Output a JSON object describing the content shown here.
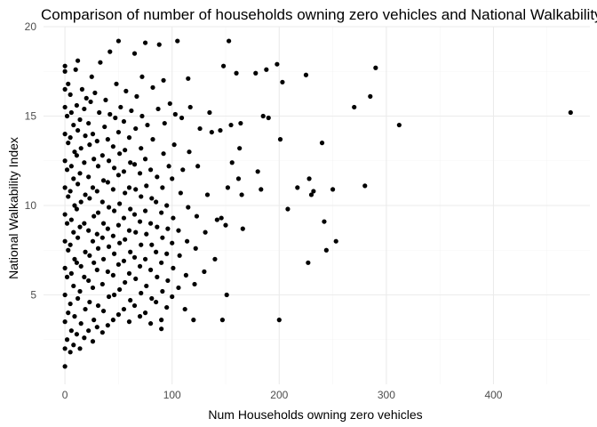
{
  "chart_data": {
    "type": "scatter",
    "title": "Comparison of number of households owning zero vehicles and National Walkability Index",
    "xlabel": "Num Households owning zero vehicles",
    "ylabel": "National Walkability Index",
    "xlim": [
      -20,
      490
    ],
    "ylim": [
      0,
      20
    ],
    "xticks": [
      0,
      100,
      200,
      300,
      400
    ],
    "yticks": [
      5,
      10,
      15,
      20
    ],
    "grid": true,
    "legend": "none",
    "point_color": "#000000",
    "series": [
      {
        "values": [
          [
            0,
            1.0
          ],
          [
            0,
            2.0
          ],
          [
            0,
            3.5
          ],
          [
            0,
            5.0
          ],
          [
            0,
            6.5
          ],
          [
            0,
            8.0
          ],
          [
            0,
            9.5
          ],
          [
            0,
            11.0
          ],
          [
            0,
            12.5
          ],
          [
            0,
            14.0
          ],
          [
            0,
            15.5
          ],
          [
            0,
            16.5
          ],
          [
            0,
            17.5
          ],
          [
            0,
            17.8
          ],
          [
            2,
            2.5
          ],
          [
            3,
            4.0
          ],
          [
            2,
            6.0
          ],
          [
            3,
            7.5
          ],
          [
            2,
            9.0
          ],
          [
            3,
            10.5
          ],
          [
            2,
            12.0
          ],
          [
            3,
            13.5
          ],
          [
            2,
            15.0
          ],
          [
            3,
            16.8
          ],
          [
            5,
            1.8
          ],
          [
            6,
            3.0
          ],
          [
            5,
            4.5
          ],
          [
            6,
            6.2
          ],
          [
            5,
            7.8
          ],
          [
            6,
            9.2
          ],
          [
            5,
            10.8
          ],
          [
            6,
            12.2
          ],
          [
            5,
            13.8
          ],
          [
            6,
            15.2
          ],
          [
            5,
            16.2
          ],
          [
            8,
            2.2
          ],
          [
            9,
            3.8
          ],
          [
            8,
            5.5
          ],
          [
            9,
            7.0
          ],
          [
            8,
            8.5
          ],
          [
            9,
            10.0
          ],
          [
            8,
            11.5
          ],
          [
            9,
            13.0
          ],
          [
            8,
            14.5
          ],
          [
            10,
            17.6
          ],
          [
            12,
            18.1
          ],
          [
            11,
            2.8
          ],
          [
            12,
            4.8
          ],
          [
            11,
            6.8
          ],
          [
            12,
            8.2
          ],
          [
            11,
            9.8
          ],
          [
            12,
            11.2
          ],
          [
            11,
            12.8
          ],
          [
            12,
            14.2
          ],
          [
            11,
            15.6
          ],
          [
            14,
            2.0
          ],
          [
            15,
            3.4
          ],
          [
            14,
            5.2
          ],
          [
            15,
            6.6
          ],
          [
            14,
            8.8
          ],
          [
            15,
            10.2
          ],
          [
            14,
            11.8
          ],
          [
            15,
            13.2
          ],
          [
            14,
            14.8
          ],
          [
            16,
            16.5
          ],
          [
            18,
            2.6
          ],
          [
            19,
            4.2
          ],
          [
            18,
            6.0
          ],
          [
            19,
            7.4
          ],
          [
            18,
            9.0
          ],
          [
            19,
            10.6
          ],
          [
            18,
            12.4
          ],
          [
            19,
            13.9
          ],
          [
            18,
            15.4
          ],
          [
            20,
            16.0
          ],
          [
            22,
            3.0
          ],
          [
            23,
            4.6
          ],
          [
            22,
            5.8
          ],
          [
            23,
            7.2
          ],
          [
            22,
            8.6
          ],
          [
            23,
            10.4
          ],
          [
            22,
            11.6
          ],
          [
            23,
            13.4
          ],
          [
            22,
            14.6
          ],
          [
            24,
            15.8
          ],
          [
            26,
            2.4
          ],
          [
            27,
            3.6
          ],
          [
            26,
            5.4
          ],
          [
            27,
            6.8
          ],
          [
            26,
            8.0
          ],
          [
            27,
            9.4
          ],
          [
            26,
            11.0
          ],
          [
            27,
            12.6
          ],
          [
            26,
            14.0
          ],
          [
            25,
            17.2
          ],
          [
            28,
            16.3
          ],
          [
            30,
            3.2
          ],
          [
            31,
            4.4
          ],
          [
            30,
            6.4
          ],
          [
            31,
            7.6
          ],
          [
            30,
            8.4
          ],
          [
            31,
            9.6
          ],
          [
            30,
            10.8
          ],
          [
            31,
            12.2
          ],
          [
            30,
            13.6
          ],
          [
            32,
            15.2
          ],
          [
            33,
            18.0
          ],
          [
            35,
            2.9
          ],
          [
            36,
            4.1
          ],
          [
            35,
            5.6
          ],
          [
            36,
            7.0
          ],
          [
            35,
            8.2
          ],
          [
            36,
            9.0
          ],
          [
            35,
            10.2
          ],
          [
            36,
            11.4
          ],
          [
            35,
            12.8
          ],
          [
            37,
            14.4
          ],
          [
            38,
            15.9
          ],
          [
            40,
            3.3
          ],
          [
            41,
            4.9
          ],
          [
            40,
            6.3
          ],
          [
            41,
            7.7
          ],
          [
            40,
            8.7
          ],
          [
            41,
            9.9
          ],
          [
            40,
            11.3
          ],
          [
            41,
            12.5
          ],
          [
            40,
            13.7
          ],
          [
            42,
            15.1
          ],
          [
            42,
            18.6
          ],
          [
            45,
            3.6
          ],
          [
            46,
            5.0
          ],
          [
            45,
            6.1
          ],
          [
            46,
            7.3
          ],
          [
            45,
            8.3
          ],
          [
            46,
            9.7
          ],
          [
            45,
            10.9
          ],
          [
            46,
            12.1
          ],
          [
            45,
            13.3
          ],
          [
            47,
            14.9
          ],
          [
            48,
            16.8
          ],
          [
            50,
            3.9
          ],
          [
            51,
            5.3
          ],
          [
            50,
            6.7
          ],
          [
            51,
            7.9
          ],
          [
            50,
            8.9
          ],
          [
            51,
            10.1
          ],
          [
            50,
            11.7
          ],
          [
            51,
            12.9
          ],
          [
            50,
            14.1
          ],
          [
            52,
            15.5
          ],
          [
            50,
            19.2
          ],
          [
            55,
            4.2
          ],
          [
            56,
            5.7
          ],
          [
            55,
            6.9
          ],
          [
            56,
            8.1
          ],
          [
            55,
            9.3
          ],
          [
            56,
            10.7
          ],
          [
            55,
            11.9
          ],
          [
            56,
            13.1
          ],
          [
            55,
            14.7
          ],
          [
            57,
            16.4
          ],
          [
            60,
            3.5
          ],
          [
            61,
            4.7
          ],
          [
            60,
            6.2
          ],
          [
            61,
            7.4
          ],
          [
            60,
            8.6
          ],
          [
            61,
            9.8
          ],
          [
            60,
            11.0
          ],
          [
            61,
            12.4
          ],
          [
            60,
            13.8
          ],
          [
            62,
            15.3
          ],
          [
            65,
            4.4
          ],
          [
            66,
            5.9
          ],
          [
            65,
            7.1
          ],
          [
            66,
            8.5
          ],
          [
            65,
            9.5
          ],
          [
            66,
            10.9
          ],
          [
            65,
            12.3
          ],
          [
            66,
            14.3
          ],
          [
            67,
            16.1
          ],
          [
            65,
            18.5
          ],
          [
            70,
            3.8
          ],
          [
            71,
            5.1
          ],
          [
            70,
            6.6
          ],
          [
            71,
            7.8
          ],
          [
            70,
            9.1
          ],
          [
            71,
            10.5
          ],
          [
            70,
            11.8
          ],
          [
            71,
            13.2
          ],
          [
            72,
            15.0
          ],
          [
            72,
            17.2
          ],
          [
            75,
            4.0
          ],
          [
            76,
            5.5
          ],
          [
            75,
            7.0
          ],
          [
            76,
            8.4
          ],
          [
            75,
            9.7
          ],
          [
            76,
            11.1
          ],
          [
            75,
            12.6
          ],
          [
            77,
            14.5
          ],
          [
            75,
            19.1
          ],
          [
            80,
            3.4
          ],
          [
            81,
            4.8
          ],
          [
            80,
            6.4
          ],
          [
            81,
            7.8
          ],
          [
            80,
            9.0
          ],
          [
            81,
            10.4
          ],
          [
            80,
            12.0
          ],
          [
            82,
            13.7
          ],
          [
            82,
            16.6
          ],
          [
            85,
            4.6
          ],
          [
            86,
            6.0
          ],
          [
            85,
            7.4
          ],
          [
            86,
            8.8
          ],
          [
            85,
            10.2
          ],
          [
            86,
            11.6
          ],
          [
            87,
            15.4
          ],
          [
            88,
            19.0
          ],
          [
            90,
            3.1
          ],
          [
            90,
            3.6
          ],
          [
            91,
            5.2
          ],
          [
            90,
            6.8
          ],
          [
            91,
            8.2
          ],
          [
            90,
            9.6
          ],
          [
            91,
            11.0
          ],
          [
            92,
            12.9
          ],
          [
            93,
            14.6
          ],
          [
            92,
            17.0
          ],
          [
            95,
            4.3
          ],
          [
            96,
            5.8
          ],
          [
            95,
            7.3
          ],
          [
            96,
            8.7
          ],
          [
            95,
            10.0
          ],
          [
            97,
            12.2
          ],
          [
            98,
            15.7
          ],
          [
            100,
            4.9
          ],
          [
            101,
            6.5
          ],
          [
            100,
            7.9
          ],
          [
            101,
            9.3
          ],
          [
            100,
            11.5
          ],
          [
            102,
            13.4
          ],
          [
            103,
            15.1
          ],
          [
            105,
            19.2
          ],
          [
            106,
            5.4
          ],
          [
            107,
            7.2
          ],
          [
            106,
            8.6
          ],
          [
            108,
            10.7
          ],
          [
            109,
            14.9
          ],
          [
            110,
            12.0
          ],
          [
            112,
            4.2
          ],
          [
            113,
            6.1
          ],
          [
            114,
            8.0
          ],
          [
            115,
            9.9
          ],
          [
            116,
            13.0
          ],
          [
            117,
            15.5
          ],
          [
            115,
            17.1
          ],
          [
            120,
            3.6
          ],
          [
            121,
            5.6
          ],
          [
            122,
            7.6
          ],
          [
            123,
            9.4
          ],
          [
            124,
            12.2
          ],
          [
            126,
            14.3
          ],
          [
            130,
            6.3
          ],
          [
            131,
            8.5
          ],
          [
            133,
            10.6
          ],
          [
            135,
            15.2
          ],
          [
            137,
            14.1
          ],
          [
            140,
            7.0
          ],
          [
            142,
            9.2
          ],
          [
            145,
            14.2
          ],
          [
            146,
            9.3
          ],
          [
            147,
            3.6
          ],
          [
            148,
            17.8
          ],
          [
            150,
            8.9
          ],
          [
            151,
            5.0
          ],
          [
            152,
            11.0
          ],
          [
            153,
            19.2
          ],
          [
            155,
            14.5
          ],
          [
            156,
            12.4
          ],
          [
            160,
            17.4
          ],
          [
            162,
            11.5
          ],
          [
            163,
            13.2
          ],
          [
            164,
            14.6
          ],
          [
            166,
            8.7
          ],
          [
            165,
            10.6
          ],
          [
            178,
            17.4
          ],
          [
            180,
            11.9
          ],
          [
            183,
            10.9
          ],
          [
            185,
            15.0
          ],
          [
            188,
            17.6
          ],
          [
            190,
            14.9
          ],
          [
            198,
            17.9
          ],
          [
            200,
            3.6
          ],
          [
            201,
            13.7
          ],
          [
            203,
            16.9
          ],
          [
            208,
            9.8
          ],
          [
            217,
            11.0
          ],
          [
            225,
            17.3
          ],
          [
            227,
            6.8
          ],
          [
            228,
            11.5
          ],
          [
            230,
            10.6
          ],
          [
            232,
            10.8
          ],
          [
            240,
            13.5
          ],
          [
            242,
            9.1
          ],
          [
            244,
            7.5
          ],
          [
            250,
            10.9
          ],
          [
            253,
            8.0
          ],
          [
            270,
            15.5
          ],
          [
            280,
            11.1
          ],
          [
            285,
            16.1
          ],
          [
            290,
            17.7
          ],
          [
            312,
            14.5
          ],
          [
            472,
            15.2
          ]
        ]
      }
    ]
  }
}
